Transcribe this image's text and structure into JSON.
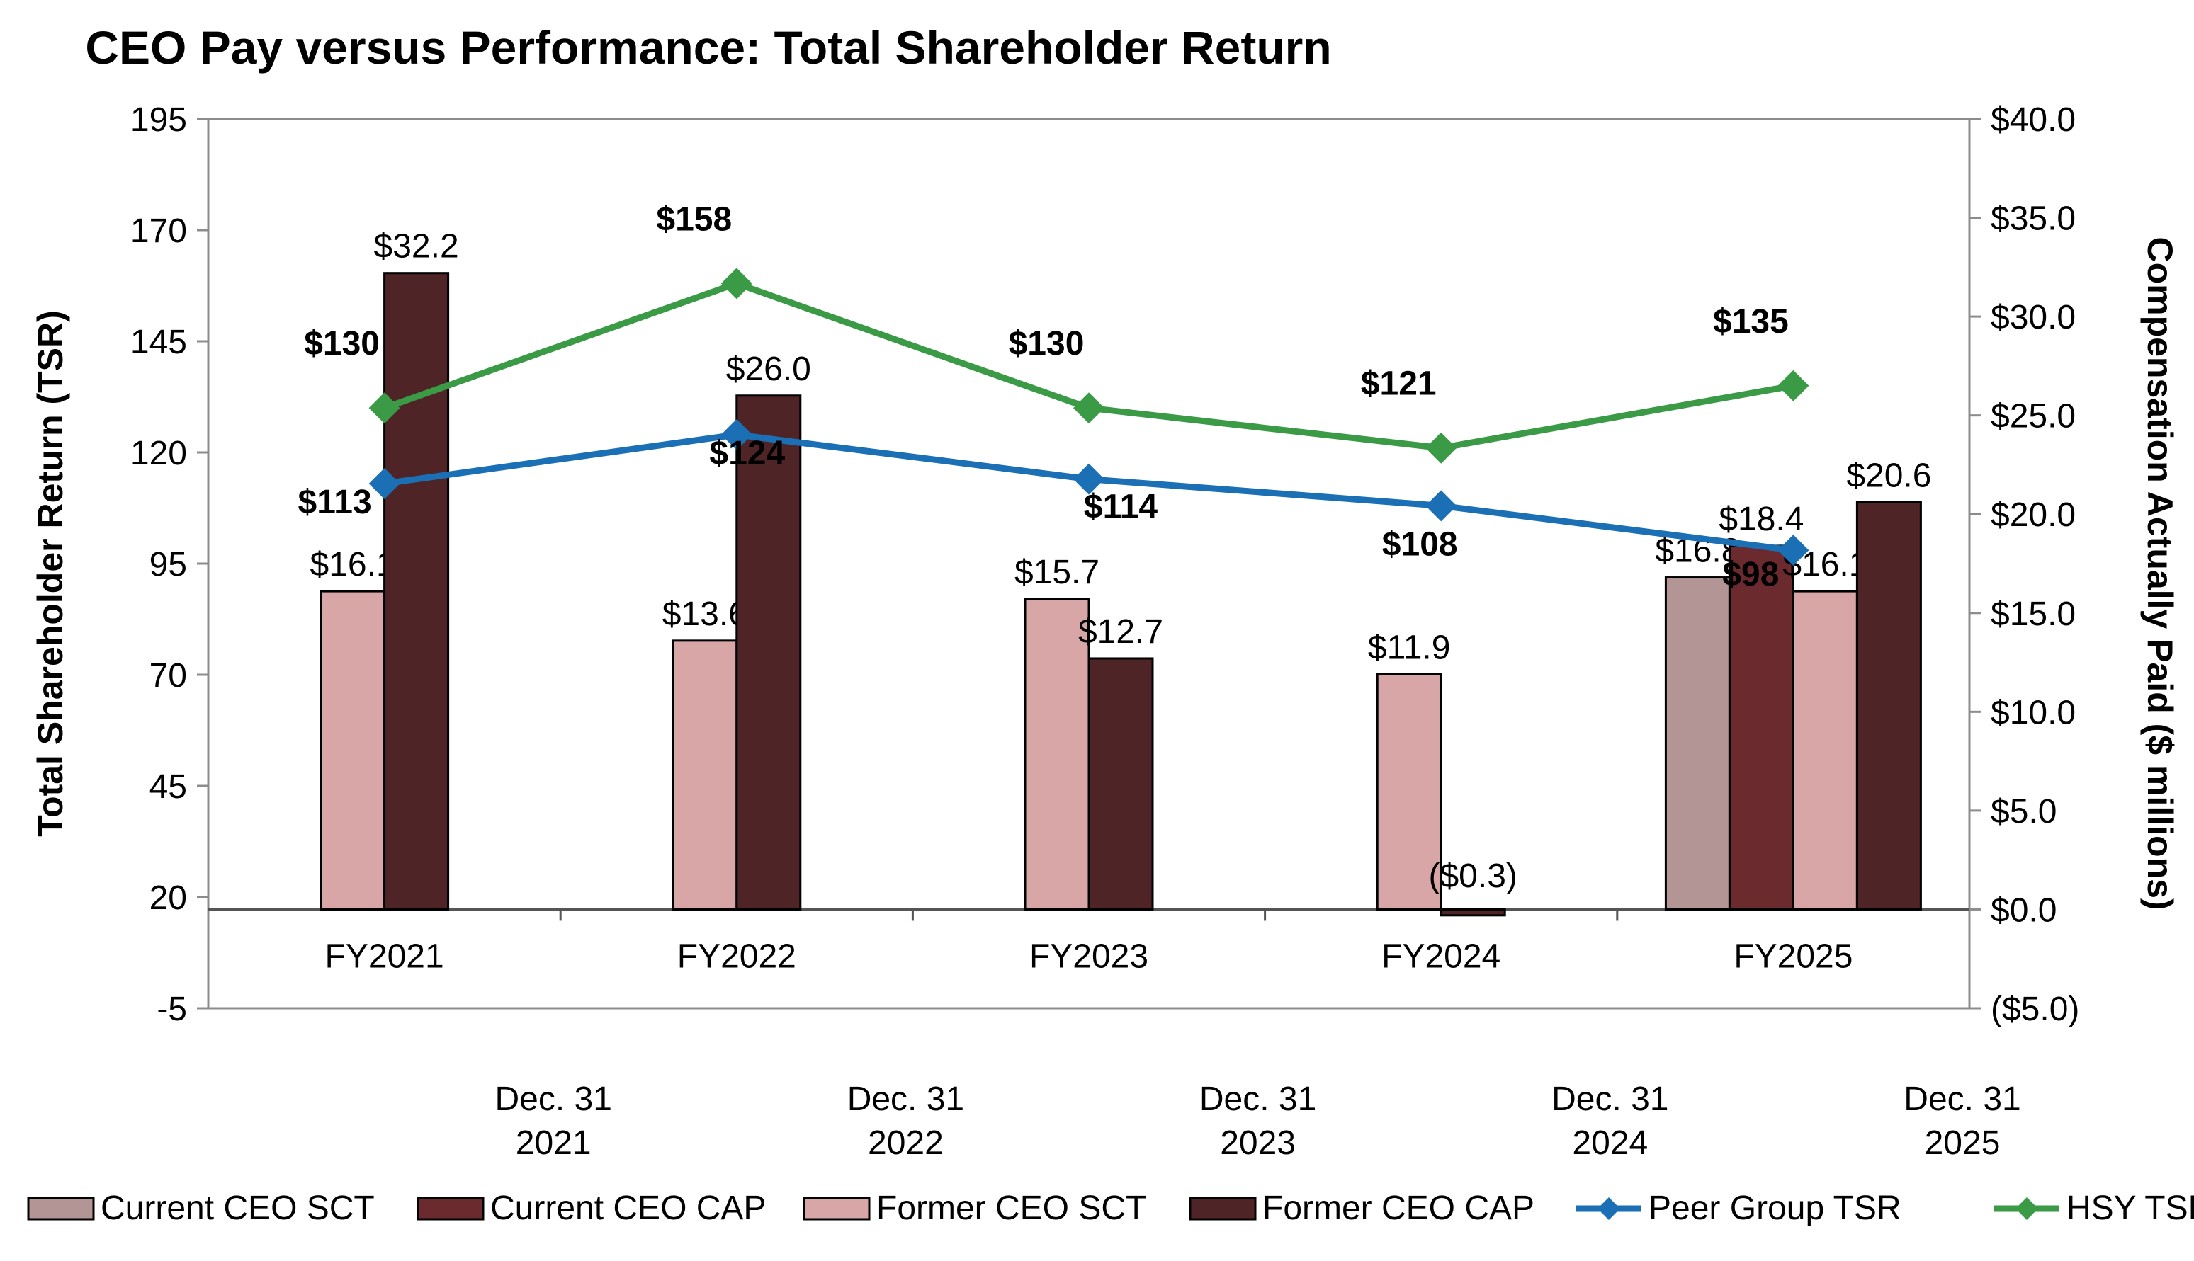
{
  "chart_data": {
    "type": "bar",
    "title": "CEO Pay versus Performance: Total Shareholder Return",
    "ylabel_left": "Total Shareholder Return (TSR)",
    "ylabel_right": "Compensation Actually Paid ($ millions)",
    "ylim_left": [
      -5,
      195
    ],
    "ylim_right": [
      -5.0,
      40.0
    ],
    "left_ticks": [
      "195",
      "170",
      "145",
      "120",
      "95",
      "70",
      "45",
      "20",
      "-5"
    ],
    "left_tick_values": [
      195,
      170,
      145,
      120,
      95,
      70,
      45,
      20,
      -5
    ],
    "right_ticks": [
      "$40.0",
      "$35.0",
      "$30.0",
      "$25.0",
      "$20.0",
      "$15.0",
      "$10.0",
      "$5.0",
      "$0.0",
      "($5.0)"
    ],
    "right_tick_values": [
      40,
      35,
      30,
      25,
      20,
      15,
      10,
      5,
      0,
      -5
    ],
    "categories": [
      "FY2021",
      "FY2022",
      "FY2023",
      "FY2024",
      "FY2025"
    ],
    "date_labels": [
      [
        "Dec. 31",
        "2021"
      ],
      [
        "Dec. 31",
        "2022"
      ],
      [
        "Dec. 31",
        "2023"
      ],
      [
        "Dec. 31",
        "2024"
      ],
      [
        "Dec. 31",
        "2025"
      ]
    ],
    "bar_series": [
      {
        "name": "Current CEO SCT",
        "color": "#b39595",
        "values": [
          null,
          null,
          null,
          null,
          16.8
        ],
        "labels": [
          null,
          null,
          null,
          null,
          "$16.8"
        ]
      },
      {
        "name": "Current CEO CAP",
        "color": "#6b2a2e",
        "values": [
          null,
          null,
          null,
          null,
          18.4
        ],
        "labels": [
          null,
          null,
          null,
          null,
          "$18.4"
        ]
      },
      {
        "name": "Former CEO SCT",
        "color": "#d8a6a6",
        "values": [
          16.1,
          13.6,
          15.7,
          11.9,
          16.1
        ],
        "labels": [
          "$16.1",
          "$13.6",
          "$15.7",
          "$11.9",
          "$16.1"
        ]
      },
      {
        "name": "Former CEO CAP",
        "color": "#4f2426",
        "values": [
          32.2,
          26.0,
          12.7,
          -0.3,
          20.6
        ],
        "labels": [
          "$32.2",
          "$26.0",
          "$12.7",
          "($0.3)",
          "$20.6"
        ]
      }
    ],
    "line_series": [
      {
        "name": "Peer Group TSR",
        "color": "#1a6fb5",
        "values": [
          113,
          124,
          114,
          108,
          98
        ],
        "labels": [
          "$113",
          "$124",
          "$114",
          "$108",
          "$98"
        ]
      },
      {
        "name": "HSY TSR",
        "color": "#3a9a45",
        "values": [
          130,
          158,
          130,
          121,
          135
        ],
        "labels": [
          "$130",
          "$158",
          "$130",
          "$121",
          "$135"
        ]
      }
    ],
    "legend": [
      "Current CEO SCT",
      "Current CEO CAP",
      "Former CEO SCT",
      "Former CEO CAP",
      "Peer Group TSR",
      "HSY TSR"
    ],
    "legend_position": "bottom"
  }
}
